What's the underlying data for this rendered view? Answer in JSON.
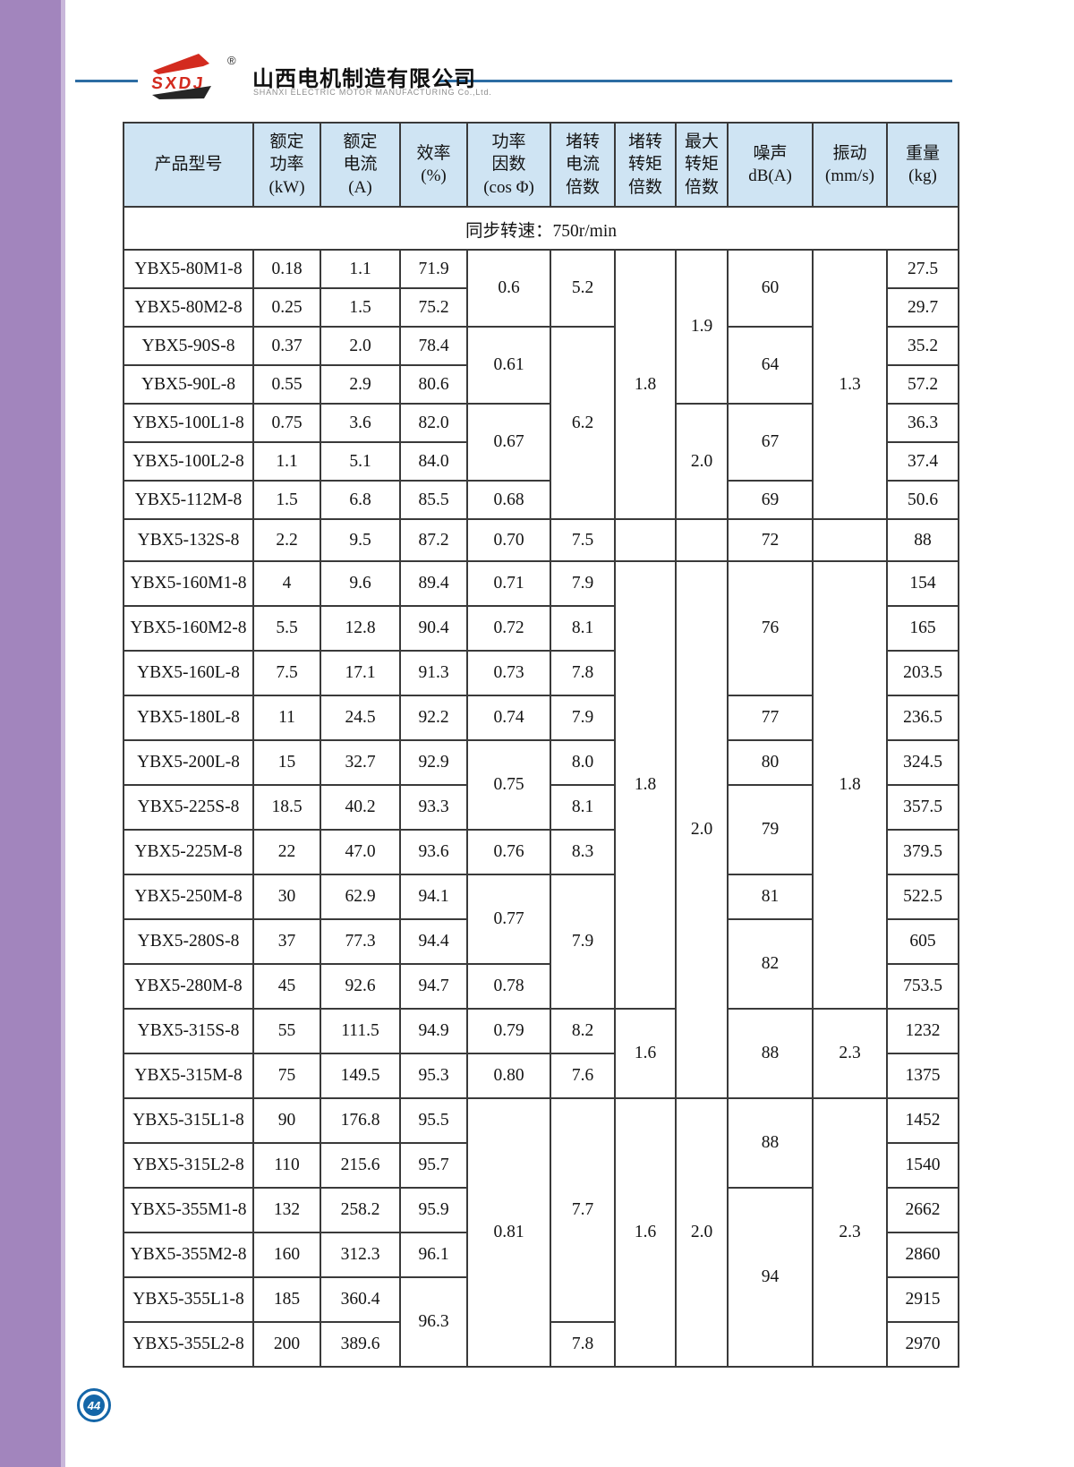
{
  "brand": {
    "logo_text": "SXDJ",
    "registered_mark": "®",
    "company_cn": "山西电机制造有限公司",
    "company_en": "SHANXI  ELECTRIC  MOTOR  MANUFACTURING  Co.,Ltd."
  },
  "page_number": "44",
  "colors": {
    "sidebar_purple": "#a285bd",
    "line_blue": "#2d6da3",
    "logo_red": "#d32b1f",
    "logo_dark": "#262626",
    "header_bg": "#cfe4f3",
    "border_dark": "#3a3a3a",
    "badge_blue": "#1466a8"
  },
  "table": {
    "header": [
      {
        "lines": [
          "产品型号"
        ]
      },
      {
        "lines": [
          "额定",
          "功率",
          "(kW)"
        ]
      },
      {
        "lines": [
          "额定",
          "电流",
          "(A)"
        ]
      },
      {
        "lines": [
          "效率",
          "(%)"
        ]
      },
      {
        "lines": [
          "功率",
          "因数",
          "(cos Φ)"
        ]
      },
      {
        "lines": [
          "堵转",
          "电流",
          "倍数"
        ]
      },
      {
        "lines": [
          "堵转",
          "转矩",
          "倍数"
        ]
      },
      {
        "lines": [
          "最大",
          "转矩",
          "倍数"
        ]
      },
      {
        "lines": [
          "噪声",
          "dB(A)"
        ]
      },
      {
        "lines": [
          "振动",
          "(mm/s)"
        ]
      },
      {
        "lines": [
          "重量",
          "(kg)"
        ]
      }
    ],
    "speed_note": "同步转速：750r/min",
    "rows": [
      [
        "YBX5-80M1-8",
        "0.18",
        "1.1",
        "71.9",
        [
          "0.6",
          2
        ],
        [
          "5.2",
          2
        ],
        [
          "1.8",
          7
        ],
        [
          "1.9",
          4
        ],
        [
          "60",
          2
        ],
        [
          "1.3",
          7
        ],
        "27.5"
      ],
      [
        "YBX5-80M2-8",
        "0.25",
        "1.5",
        "75.2",
        "29.7"
      ],
      [
        "YBX5-90S-8",
        "0.37",
        "2.0",
        "78.4",
        [
          "0.61",
          2
        ],
        [
          "6.2",
          5
        ],
        [
          "64",
          2
        ],
        "35.2"
      ],
      [
        "YBX5-90L-8",
        "0.55",
        "2.9",
        "80.6",
        "57.2"
      ],
      [
        "YBX5-100L1-8",
        "0.75",
        "3.6",
        "82.0",
        [
          "0.67",
          2
        ],
        [
          "2.0",
          3
        ],
        [
          "67",
          2
        ],
        "36.3"
      ],
      [
        "YBX5-100L2-8",
        "1.1",
        "5.1",
        "84.0",
        "37.4"
      ],
      [
        "YBX5-112M-8",
        "1.5",
        "6.8",
        "85.5",
        "0.68",
        "69",
        "50.6"
      ],
      [
        "YBX5-132S-8",
        "2.2",
        "9.5",
        "87.2",
        "0.70",
        "7.5",
        "",
        "",
        "72",
        "",
        "88"
      ],
      [
        "YBX5-160M1-8",
        "4",
        "9.6",
        "89.4",
        "0.71",
        "7.9",
        [
          "1.8",
          10
        ],
        [
          "2.0",
          12
        ],
        [
          "76",
          3
        ],
        [
          "1.8",
          10
        ],
        "154"
      ],
      [
        "YBX5-160M2-8",
        "5.5",
        "12.8",
        "90.4",
        "0.72",
        "8.1",
        "165"
      ],
      [
        "YBX5-160L-8",
        "7.5",
        "17.1",
        "91.3",
        "0.73",
        "7.8",
        "203.5"
      ],
      [
        "YBX5-180L-8",
        "11",
        "24.5",
        "92.2",
        "0.74",
        "7.9",
        "77",
        "236.5"
      ],
      [
        "YBX5-200L-8",
        "15",
        "32.7",
        "92.9",
        [
          "0.75",
          2
        ],
        "8.0",
        "80",
        "324.5"
      ],
      [
        "YBX5-225S-8",
        "18.5",
        "40.2",
        "93.3",
        "8.1",
        [
          "79",
          2
        ],
        "357.5"
      ],
      [
        "YBX5-225M-8",
        "22",
        "47.0",
        "93.6",
        "0.76",
        "8.3",
        "379.5"
      ],
      [
        "YBX5-250M-8",
        "30",
        "62.9",
        "94.1",
        [
          "0.77",
          2
        ],
        [
          "7.9",
          3
        ],
        "81",
        "522.5"
      ],
      [
        "YBX5-280S-8",
        "37",
        "77.3",
        "94.4",
        [
          "82",
          2
        ],
        "605"
      ],
      [
        "YBX5-280M-8",
        "45",
        "92.6",
        "94.7",
        "0.78",
        "753.5"
      ],
      [
        "YBX5-315S-8",
        "55",
        "111.5",
        "94.9",
        "0.79",
        "8.2",
        [
          "1.6",
          2
        ],
        [
          "88",
          2
        ],
        [
          "2.3",
          2
        ],
        "1232"
      ],
      [
        "YBX5-315M-8",
        "75",
        "149.5",
        "95.3",
        "0.80",
        "7.6",
        "1375"
      ],
      [
        "YBX5-315L1-8",
        "90",
        "176.8",
        "95.5",
        [
          "0.81",
          6
        ],
        [
          "7.7",
          5
        ],
        [
          "1.6",
          6
        ],
        [
          "2.0",
          6
        ],
        [
          "88",
          2
        ],
        [
          "2.3",
          6
        ],
        "1452"
      ],
      [
        "YBX5-315L2-8",
        "110",
        "215.6",
        "95.7",
        "1540"
      ],
      [
        "YBX5-355M1-8",
        "132",
        "258.2",
        "95.9",
        [
          "94",
          4
        ],
        "2662"
      ],
      [
        "YBX5-355M2-8",
        "160",
        "312.3",
        "96.1",
        "2860"
      ],
      [
        "YBX5-355L1-8",
        "185",
        "360.4",
        [
          "96.3",
          2
        ],
        "2915"
      ],
      [
        "YBX5-355L2-8",
        "200",
        "389.6",
        "7.8",
        "2970"
      ]
    ]
  }
}
